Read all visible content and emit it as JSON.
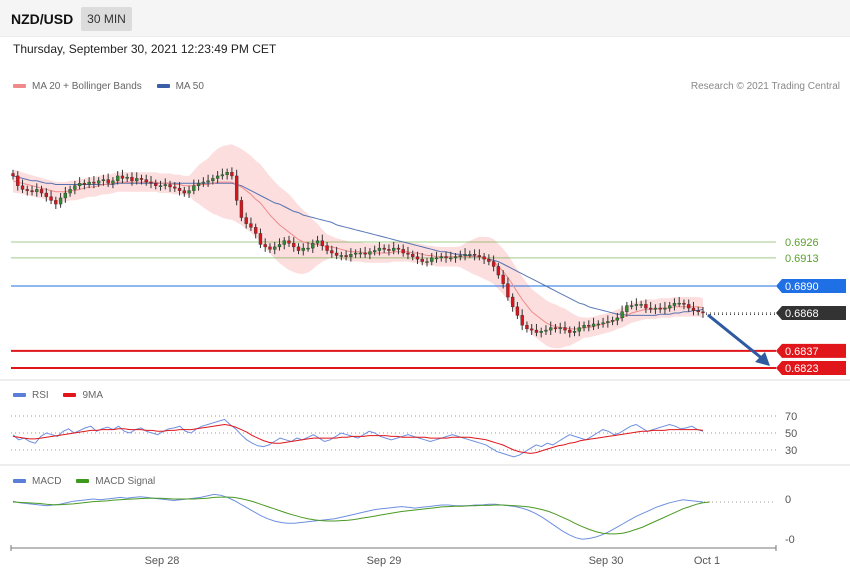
{
  "header": {
    "symbol": "NZD/USD",
    "timeframe": "30 MIN",
    "timestamp": "Thursday, September 30, 2021 12:23:49 PM CET",
    "credit": "Research © 2021 Trading Central"
  },
  "legends": {
    "price": [
      {
        "label": "MA 20 + Bollinger Bands",
        "color": "#f08a8a"
      },
      {
        "label": "MA 50",
        "color": "#3a5fa8"
      }
    ],
    "rsi": [
      {
        "label": "RSI",
        "color": "#5b7fd8"
      },
      {
        "label": "9MA",
        "color": "#e0161b"
      }
    ],
    "macd": [
      {
        "label": "MACD",
        "color": "#5b7fd8"
      },
      {
        "label": "MACD Signal",
        "color": "#3d9a1c"
      }
    ]
  },
  "chart_data": [
    {
      "type": "candlestick",
      "panel": "price",
      "symbol": "NZD/USD",
      "y_range": [
        0.681,
        0.6995
      ],
      "x_ticks": [
        "Sep 28",
        "Sep 29",
        "Sep 30",
        "Oct 1"
      ],
      "current_price": {
        "value": "0.6868",
        "color": "#333333"
      },
      "levels": [
        {
          "value": "0.6926",
          "kind": "resistance",
          "color": "#5aa02c"
        },
        {
          "value": "0.6913",
          "kind": "resistance",
          "color": "#5aa02c"
        },
        {
          "value": "0.6890",
          "kind": "pivot",
          "color": "#1f6fe5"
        },
        {
          "value": "0.6837",
          "kind": "support",
          "color": "#e0161b"
        },
        {
          "value": "0.6823",
          "kind": "support",
          "color": "#e0161b"
        }
      ],
      "close_series": [
        0.698,
        0.6972,
        0.6969,
        0.6968,
        0.6967,
        0.6969,
        0.6966,
        0.6963,
        0.696,
        0.6957,
        0.6962,
        0.6966,
        0.6969,
        0.6972,
        0.6974,
        0.6973,
        0.6975,
        0.6974,
        0.6976,
        0.6977,
        0.6974,
        0.6976,
        0.698,
        0.6978,
        0.6979,
        0.6976,
        0.6978,
        0.6977,
        0.6975,
        0.6974,
        0.6972,
        0.6972,
        0.6973,
        0.6971,
        0.697,
        0.6968,
        0.6966,
        0.6968,
        0.6972,
        0.6974,
        0.6975,
        0.6976,
        0.6978,
        0.698,
        0.6981,
        0.6983,
        0.698,
        0.696,
        0.6946,
        0.6941,
        0.6938,
        0.6933,
        0.6924,
        0.6922,
        0.692,
        0.6922,
        0.6924,
        0.6927,
        0.6925,
        0.6922,
        0.6919,
        0.6921,
        0.6921,
        0.6925,
        0.6927,
        0.6923,
        0.6919,
        0.6917,
        0.6915,
        0.6915,
        0.6914,
        0.6916,
        0.6917,
        0.6917,
        0.6916,
        0.6918,
        0.6919,
        0.6921,
        0.692,
        0.6919,
        0.6921,
        0.692,
        0.6917,
        0.6916,
        0.6914,
        0.6912,
        0.691,
        0.691,
        0.6913,
        0.6913,
        0.6914,
        0.6913,
        0.6913,
        0.6914,
        0.6915,
        0.6916,
        0.6916,
        0.6915,
        0.6914,
        0.6912,
        0.691,
        0.6906,
        0.6899,
        0.6892,
        0.6881,
        0.6873,
        0.6866,
        0.6858,
        0.6855,
        0.6854,
        0.6852,
        0.6853,
        0.6854,
        0.6856,
        0.6855,
        0.6856,
        0.6854,
        0.6852,
        0.6853,
        0.6856,
        0.6858,
        0.6857,
        0.6859,
        0.6859,
        0.686,
        0.6861,
        0.6862,
        0.6864,
        0.6869,
        0.6874,
        0.6874,
        0.6875,
        0.6875,
        0.6872,
        0.6871,
        0.6872,
        0.6871,
        0.6872,
        0.6874,
        0.6876,
        0.6876,
        0.6875,
        0.6872,
        0.687,
        0.6869,
        0.6868
      ],
      "ma20_series": [
        0.6976,
        0.6975,
        0.6974,
        0.6973,
        0.6972,
        0.6971,
        0.697,
        0.6969,
        0.6968,
        0.6967,
        0.6967,
        0.6967,
        0.6968,
        0.6968,
        0.6969,
        0.697,
        0.6971,
        0.6971,
        0.6972,
        0.6973,
        0.6973,
        0.6974,
        0.6975,
        0.6975,
        0.6975,
        0.6975,
        0.6975,
        0.6975,
        0.6975,
        0.6975,
        0.6975,
        0.6974,
        0.6974,
        0.6974,
        0.6973,
        0.6973,
        0.6972,
        0.6972,
        0.6972,
        0.6973,
        0.6973,
        0.6973,
        0.6974,
        0.6975,
        0.6975,
        0.6975,
        0.6975,
        0.6973,
        0.6971,
        0.6968,
        0.6965,
        0.6961,
        0.6958,
        0.6953,
        0.6948,
        0.6944,
        0.694,
        0.6937,
        0.6934,
        0.6931,
        0.6928,
        0.6926,
        0.6925,
        0.6924,
        0.6924,
        0.6923,
        0.6922,
        0.6922,
        0.6921,
        0.692,
        0.6919,
        0.6918,
        0.6918,
        0.6918,
        0.6917,
        0.6917,
        0.6917,
        0.6917,
        0.6917,
        0.6917,
        0.6918,
        0.6918,
        0.6918,
        0.6918,
        0.6917,
        0.6917,
        0.6916,
        0.6915,
        0.6915,
        0.6914,
        0.6914,
        0.6914,
        0.6914,
        0.6914,
        0.6914,
        0.6914,
        0.6914,
        0.6914,
        0.6914,
        0.6913,
        0.6912,
        0.691,
        0.6906,
        0.6902,
        0.6897,
        0.6891,
        0.6885,
        0.6879,
        0.6874,
        0.6869,
        0.6866,
        0.6863,
        0.686,
        0.6858,
        0.6857,
        0.6856,
        0.6856,
        0.6855,
        0.6855,
        0.6855,
        0.6856,
        0.6856,
        0.6857,
        0.6858,
        0.6859,
        0.686,
        0.6861,
        0.6863,
        0.6864,
        0.6866,
        0.6868,
        0.6869,
        0.687,
        0.6871,
        0.6871,
        0.6871,
        0.6872,
        0.6872,
        0.6872,
        0.6873,
        0.6873,
        0.6873,
        0.6873,
        0.6873,
        0.6873,
        0.6872
      ],
      "ma50_series": [
        0.698,
        0.6979,
        0.6978,
        0.6977,
        0.6976,
        0.6976,
        0.6975,
        0.6974,
        0.6974,
        0.6973,
        0.6973,
        0.6973,
        0.6973,
        0.6973,
        0.6973,
        0.6973,
        0.6973,
        0.6973,
        0.6973,
        0.6973,
        0.6973,
        0.6973,
        0.6974,
        0.6974,
        0.6974,
        0.6974,
        0.6974,
        0.6974,
        0.6974,
        0.6974,
        0.6974,
        0.6974,
        0.6974,
        0.6974,
        0.6974,
        0.6974,
        0.6974,
        0.6974,
        0.6974,
        0.6974,
        0.6974,
        0.6974,
        0.6974,
        0.6974,
        0.6974,
        0.6974,
        0.6974,
        0.6973,
        0.6972,
        0.697,
        0.6968,
        0.6966,
        0.6964,
        0.6962,
        0.696,
        0.6958,
        0.6957,
        0.6955,
        0.6953,
        0.6951,
        0.695,
        0.6948,
        0.6947,
        0.6946,
        0.6945,
        0.6944,
        0.6943,
        0.6942,
        0.694,
        0.6939,
        0.6938,
        0.6937,
        0.6936,
        0.6935,
        0.6934,
        0.6933,
        0.6932,
        0.6931,
        0.693,
        0.6929,
        0.6928,
        0.6927,
        0.6926,
        0.6925,
        0.6924,
        0.6923,
        0.6922,
        0.6921,
        0.692,
        0.6919,
        0.6918,
        0.6918,
        0.6917,
        0.6916,
        0.6916,
        0.6915,
        0.6915,
        0.6914,
        0.6914,
        0.6913,
        0.6912,
        0.6911,
        0.691,
        0.6908,
        0.6906,
        0.6904,
        0.6902,
        0.69,
        0.6898,
        0.6896,
        0.6894,
        0.6892,
        0.689,
        0.6888,
        0.6886,
        0.6884,
        0.6882,
        0.688,
        0.6878,
        0.6876,
        0.6875,
        0.6873,
        0.6872,
        0.6871,
        0.687,
        0.6869,
        0.6868,
        0.6867,
        0.6867,
        0.6866,
        0.6866,
        0.6866,
        0.6866,
        0.6866,
        0.6866,
        0.6866,
        0.6867,
        0.6867,
        0.6867,
        0.6868,
        0.6868,
        0.6869,
        0.6869,
        0.687,
        0.687,
        0.6871
      ]
    },
    {
      "type": "line",
      "panel": "rsi",
      "y_ticks": [
        "70",
        "50",
        "30"
      ],
      "y_range": [
        18,
        80
      ],
      "rsi_series": [
        48,
        42,
        44,
        40,
        38,
        46,
        50,
        48,
        46,
        52,
        55,
        50,
        53,
        56,
        58,
        52,
        55,
        57,
        54,
        58,
        52,
        50,
        54,
        56,
        52,
        50,
        48,
        52,
        55,
        56,
        58,
        52,
        50,
        55,
        58,
        60,
        62,
        64,
        66,
        60,
        55,
        48,
        42,
        38,
        35,
        34,
        36,
        40,
        44,
        42,
        40,
        44,
        42,
        45,
        48,
        44,
        40,
        42,
        46,
        50,
        48,
        46,
        44,
        48,
        52,
        50,
        46,
        44,
        42,
        44,
        46,
        48,
        46,
        44,
        42,
        40,
        42,
        44,
        46,
        48,
        46,
        44,
        42,
        40,
        38,
        36,
        32,
        28,
        26,
        24,
        22,
        24,
        28,
        32,
        36,
        34,
        38,
        36,
        40,
        44,
        48,
        46,
        44,
        42,
        46,
        50,
        54,
        52,
        48,
        50,
        54,
        58,
        60,
        56,
        52,
        54,
        56,
        58,
        60,
        58,
        55,
        56,
        58,
        54,
        52
      ],
      "ma9_series": [
        46,
        45,
        44,
        43,
        43,
        44,
        45,
        46,
        47,
        48,
        49,
        50,
        51,
        52,
        53,
        53,
        54,
        54,
        54,
        55,
        55,
        54,
        54,
        54,
        53,
        53,
        52,
        52,
        53,
        53,
        54,
        54,
        54,
        55,
        56,
        57,
        58,
        59,
        60,
        59,
        57,
        54,
        51,
        47,
        44,
        41,
        39,
        38,
        38,
        39,
        40,
        41,
        42,
        43,
        44,
        44,
        44,
        44,
        44,
        45,
        45,
        46,
        46,
        46,
        47,
        47,
        47,
        47,
        46,
        46,
        45,
        45,
        45,
        45,
        45,
        44,
        44,
        44,
        44,
        45,
        45,
        45,
        45,
        44,
        43,
        42,
        40,
        38,
        36,
        33,
        30,
        28,
        27,
        26,
        27,
        29,
        31,
        33,
        35,
        36,
        38,
        39,
        41,
        42,
        43,
        44,
        45,
        46,
        47,
        48,
        49,
        50,
        51,
        52,
        52,
        53,
        53,
        53,
        54,
        54,
        54,
        54,
        54,
        54,
        53
      ]
    },
    {
      "type": "line",
      "panel": "macd",
      "y_ticks": [
        "0",
        "-0"
      ],
      "y_range": [
        -100,
        35
      ],
      "macd_series": [
        2,
        -2,
        -4,
        -6,
        -8,
        -10,
        -8,
        -6,
        -2,
        2,
        4,
        6,
        8,
        6,
        8,
        10,
        12,
        10,
        12,
        14,
        12,
        10,
        8,
        6,
        4,
        6,
        8,
        10,
        12,
        16,
        20,
        18,
        12,
        4,
        -6,
        -16,
        -26,
        -36,
        -44,
        -50,
        -54,
        -56,
        -56,
        -54,
        -52,
        -50,
        -48,
        -46,
        -44,
        -40,
        -36,
        -32,
        -28,
        -24,
        -20,
        -18,
        -16,
        -14,
        -12,
        -14,
        -16,
        -14,
        -12,
        -10,
        -8,
        -8,
        -10,
        -10,
        -10,
        -8,
        -8,
        -6,
        -6,
        -8,
        -10,
        -12,
        -16,
        -22,
        -30,
        -40,
        -52,
        -64,
        -76,
        -86,
        -94,
        -98,
        -96,
        -92,
        -86,
        -78,
        -68,
        -58,
        -48,
        -38,
        -30,
        -22,
        -14,
        -8,
        -2,
        2,
        6,
        4,
        2,
        0
      ],
      "signal_series": [
        0,
        -1,
        -2,
        -3,
        -4,
        -6,
        -7,
        -7,
        -6,
        -5,
        -3,
        -1,
        1,
        2,
        3,
        5,
        6,
        7,
        8,
        9,
        10,
        10,
        10,
        9,
        8,
        8,
        8,
        8,
        9,
        10,
        12,
        13,
        13,
        12,
        9,
        5,
        0,
        -6,
        -12,
        -18,
        -24,
        -30,
        -35,
        -40,
        -44,
        -47,
        -49,
        -50,
        -50,
        -49,
        -48,
        -46,
        -43,
        -40,
        -37,
        -34,
        -31,
        -28,
        -25,
        -23,
        -21,
        -19,
        -17,
        -15,
        -13,
        -12,
        -11,
        -11,
        -10,
        -10,
        -9,
        -9,
        -8,
        -8,
        -9,
        -10,
        -11,
        -13,
        -16,
        -20,
        -25,
        -32,
        -40,
        -48,
        -57,
        -65,
        -72,
        -78,
        -82,
        -84,
        -84,
        -82,
        -78,
        -72,
        -66,
        -58,
        -50,
        -42,
        -34,
        -26,
        -18,
        -12,
        -6,
        -2,
        0
      ]
    }
  ],
  "x_axis": {
    "ticks": [
      {
        "label": "Sep 28"
      },
      {
        "label": "Sep 29"
      },
      {
        "label": "Sep 30"
      },
      {
        "label": "Oct 1"
      }
    ]
  }
}
